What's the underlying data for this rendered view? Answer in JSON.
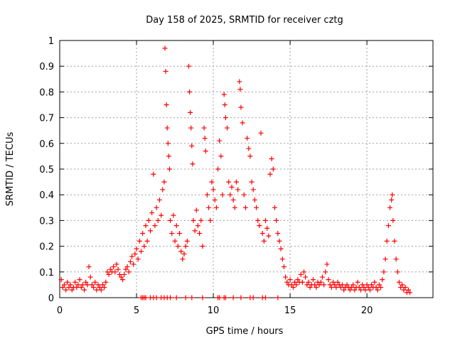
{
  "chart_data": {
    "type": "scatter",
    "title": "Day 158 of 2025, SRMTID for receiver cztg",
    "xlabel": "GPS time / hours",
    "ylabel": "SRMTID / TECUs",
    "xlim": [
      0,
      24.3
    ],
    "ylim": [
      0,
      1
    ],
    "xticks": [
      0,
      5,
      10,
      15,
      20
    ],
    "yticks": [
      0,
      0.1,
      0.2,
      0.3,
      0.4,
      0.5,
      0.6,
      0.7,
      0.8,
      0.9,
      1
    ],
    "xtick_labels": [
      "0",
      "5",
      "10",
      "15",
      "20"
    ],
    "ytick_labels": [
      "0",
      "0.1",
      "0.2",
      "0.3",
      "0.4",
      "0.5",
      "0.6",
      "0.7",
      "0.8",
      "0.9",
      "1"
    ],
    "grid": true,
    "marker": "+",
    "color": "#ff0000",
    "series": [
      {
        "name": "SRMTID",
        "points": [
          [
            0.1,
            0.07
          ],
          [
            0.2,
            0.04
          ],
          [
            0.3,
            0.05
          ],
          [
            0.4,
            0.03
          ],
          [
            0.5,
            0.06
          ],
          [
            0.6,
            0.04
          ],
          [
            0.7,
            0.05
          ],
          [
            0.8,
            0.03
          ],
          [
            0.9,
            0.04
          ],
          [
            1.0,
            0.06
          ],
          [
            1.1,
            0.04
          ],
          [
            1.2,
            0.05
          ],
          [
            1.3,
            0.07
          ],
          [
            1.4,
            0.04
          ],
          [
            1.5,
            0.05
          ],
          [
            1.6,
            0.03
          ],
          [
            1.7,
            0.06
          ],
          [
            1.8,
            0.05
          ],
          [
            1.9,
            0.12
          ],
          [
            2.0,
            0.08
          ],
          [
            2.1,
            0.05
          ],
          [
            2.2,
            0.04
          ],
          [
            2.3,
            0.06
          ],
          [
            2.4,
            0.03
          ],
          [
            2.5,
            0.05
          ],
          [
            2.6,
            0.04
          ],
          [
            2.7,
            0.03
          ],
          [
            2.8,
            0.05
          ],
          [
            2.9,
            0.04
          ],
          [
            3.0,
            0.06
          ],
          [
            3.1,
            0.1
          ],
          [
            3.2,
            0.09
          ],
          [
            3.3,
            0.11
          ],
          [
            3.4,
            0.1
          ],
          [
            3.5,
            0.12
          ],
          [
            3.6,
            0.1
          ],
          [
            3.7,
            0.13
          ],
          [
            3.8,
            0.11
          ],
          [
            3.9,
            0.09
          ],
          [
            4.0,
            0.08
          ],
          [
            4.1,
            0.07
          ],
          [
            4.2,
            0.09
          ],
          [
            4.3,
            0.11
          ],
          [
            4.4,
            0.12
          ],
          [
            4.5,
            0.1
          ],
          [
            4.6,
            0.14
          ],
          [
            4.7,
            0.16
          ],
          [
            4.8,
            0.13
          ],
          [
            4.9,
            0.17
          ],
          [
            5.0,
            0.19
          ],
          [
            5.1,
            0.15
          ],
          [
            5.2,
            0.22
          ],
          [
            5.3,
            0.18
          ],
          [
            5.4,
            0.25
          ],
          [
            5.5,
            0.2
          ],
          [
            5.6,
            0.28
          ],
          [
            5.7,
            0.22
          ],
          [
            5.8,
            0.3
          ],
          [
            5.9,
            0.26
          ],
          [
            6.0,
            0.33
          ],
          [
            6.1,
            0.48
          ],
          [
            6.2,
            0.28
          ],
          [
            6.3,
            0.35
          ],
          [
            6.4,
            0.3
          ],
          [
            6.5,
            0.38
          ],
          [
            6.6,
            0.32
          ],
          [
            6.7,
            0.42
          ],
          [
            6.8,
            0.45
          ],
          [
            6.85,
            0.97
          ],
          [
            6.9,
            0.88
          ],
          [
            6.95,
            0.75
          ],
          [
            7.0,
            0.66
          ],
          [
            7.05,
            0.6
          ],
          [
            7.1,
            0.55
          ],
          [
            7.15,
            0.5
          ],
          [
            7.2,
            0.3
          ],
          [
            7.3,
            0.25
          ],
          [
            7.4,
            0.32
          ],
          [
            7.5,
            0.22
          ],
          [
            7.6,
            0.28
          ],
          [
            7.7,
            0.2
          ],
          [
            7.8,
            0.25
          ],
          [
            7.9,
            0.18
          ],
          [
            8.0,
            0.15
          ],
          [
            8.1,
            0.17
          ],
          [
            8.2,
            0.2
          ],
          [
            8.3,
            0.22
          ],
          [
            8.4,
            0.9
          ],
          [
            8.45,
            0.8
          ],
          [
            8.5,
            0.72
          ],
          [
            8.55,
            0.66
          ],
          [
            8.6,
            0.59
          ],
          [
            8.65,
            0.52
          ],
          [
            8.7,
            0.3
          ],
          [
            8.8,
            0.26
          ],
          [
            8.9,
            0.34
          ],
          [
            9.0,
            0.28
          ],
          [
            9.1,
            0.25
          ],
          [
            9.2,
            0.3
          ],
          [
            9.3,
            0.2
          ],
          [
            9.4,
            0.66
          ],
          [
            9.45,
            0.62
          ],
          [
            9.5,
            0.57
          ],
          [
            9.6,
            0.4
          ],
          [
            9.7,
            0.35
          ],
          [
            9.8,
            0.3
          ],
          [
            9.9,
            0.45
          ],
          [
            10.0,
            0.42
          ],
          [
            10.1,
            0.38
          ],
          [
            10.2,
            0.35
          ],
          [
            10.3,
            0.5
          ],
          [
            10.4,
            0.61
          ],
          [
            10.5,
            0.55
          ],
          [
            10.6,
            0.4
          ],
          [
            10.7,
            0.79
          ],
          [
            10.75,
            0.75
          ],
          [
            10.8,
            0.7
          ],
          [
            10.9,
            0.66
          ],
          [
            11.0,
            0.45
          ],
          [
            11.1,
            0.4
          ],
          [
            11.2,
            0.43
          ],
          [
            11.3,
            0.38
          ],
          [
            11.4,
            0.35
          ],
          [
            11.5,
            0.45
          ],
          [
            11.6,
            0.42
          ],
          [
            11.7,
            0.84
          ],
          [
            11.75,
            0.81
          ],
          [
            11.8,
            0.74
          ],
          [
            11.9,
            0.68
          ],
          [
            12.0,
            0.4
          ],
          [
            12.1,
            0.35
          ],
          [
            12.2,
            0.62
          ],
          [
            12.3,
            0.58
          ],
          [
            12.4,
            0.55
          ],
          [
            12.5,
            0.45
          ],
          [
            12.6,
            0.42
          ],
          [
            12.7,
            0.38
          ],
          [
            12.8,
            0.35
          ],
          [
            12.9,
            0.3
          ],
          [
            13.0,
            0.28
          ],
          [
            13.1,
            0.64
          ],
          [
            13.2,
            0.25
          ],
          [
            13.3,
            0.22
          ],
          [
            13.4,
            0.3
          ],
          [
            13.5,
            0.27
          ],
          [
            13.6,
            0.24
          ],
          [
            13.7,
            0.48
          ],
          [
            13.8,
            0.54
          ],
          [
            13.9,
            0.5
          ],
          [
            14.0,
            0.35
          ],
          [
            14.1,
            0.3
          ],
          [
            14.2,
            0.25
          ],
          [
            14.3,
            0.22
          ],
          [
            14.4,
            0.19
          ],
          [
            14.5,
            0.15
          ],
          [
            14.6,
            0.12
          ],
          [
            14.7,
            0.08
          ],
          [
            14.8,
            0.06
          ],
          [
            14.9,
            0.05
          ],
          [
            15.0,
            0.07
          ],
          [
            15.1,
            0.05
          ],
          [
            15.2,
            0.04
          ],
          [
            15.3,
            0.06
          ],
          [
            15.4,
            0.05
          ],
          [
            15.5,
            0.07
          ],
          [
            15.6,
            0.06
          ],
          [
            15.7,
            0.09
          ],
          [
            15.8,
            0.06
          ],
          [
            15.9,
            0.1
          ],
          [
            16.0,
            0.08
          ],
          [
            16.1,
            0.05
          ],
          [
            16.2,
            0.06
          ],
          [
            16.3,
            0.04
          ],
          [
            16.4,
            0.05
          ],
          [
            16.5,
            0.07
          ],
          [
            16.6,
            0.05
          ],
          [
            16.7,
            0.04
          ],
          [
            16.8,
            0.06
          ],
          [
            16.9,
            0.05
          ],
          [
            17.0,
            0.06
          ],
          [
            17.1,
            0.08
          ],
          [
            17.2,
            0.05
          ],
          [
            17.3,
            0.1
          ],
          [
            17.4,
            0.13
          ],
          [
            17.5,
            0.07
          ],
          [
            17.6,
            0.05
          ],
          [
            17.7,
            0.04
          ],
          [
            17.8,
            0.06
          ],
          [
            17.9,
            0.05
          ],
          [
            18.0,
            0.04
          ],
          [
            18.1,
            0.06
          ],
          [
            18.2,
            0.05
          ],
          [
            18.3,
            0.04
          ],
          [
            18.4,
            0.05
          ],
          [
            18.5,
            0.03
          ],
          [
            18.6,
            0.04
          ],
          [
            18.7,
            0.05
          ],
          [
            18.8,
            0.04
          ],
          [
            18.9,
            0.03
          ],
          [
            19.0,
            0.04
          ],
          [
            19.1,
            0.05
          ],
          [
            19.2,
            0.03
          ],
          [
            19.3,
            0.04
          ],
          [
            19.4,
            0.06
          ],
          [
            19.5,
            0.04
          ],
          [
            19.6,
            0.03
          ],
          [
            19.7,
            0.05
          ],
          [
            19.8,
            0.04
          ],
          [
            19.9,
            0.03
          ],
          [
            20.0,
            0.05
          ],
          [
            20.1,
            0.04
          ],
          [
            20.2,
            0.03
          ],
          [
            20.3,
            0.05
          ],
          [
            20.4,
            0.04
          ],
          [
            20.5,
            0.06
          ],
          [
            20.6,
            0.04
          ],
          [
            20.7,
            0.03
          ],
          [
            20.8,
            0.05
          ],
          [
            20.9,
            0.04
          ],
          [
            21.0,
            0.07
          ],
          [
            21.1,
            0.1
          ],
          [
            21.2,
            0.15
          ],
          [
            21.3,
            0.22
          ],
          [
            21.4,
            0.28
          ],
          [
            21.5,
            0.35
          ],
          [
            21.6,
            0.38
          ],
          [
            21.65,
            0.4
          ],
          [
            21.7,
            0.3
          ],
          [
            21.8,
            0.22
          ],
          [
            21.9,
            0.15
          ],
          [
            22.0,
            0.1
          ],
          [
            22.1,
            0.06
          ],
          [
            22.2,
            0.04
          ],
          [
            22.3,
            0.05
          ],
          [
            22.4,
            0.03
          ],
          [
            22.5,
            0.04
          ],
          [
            22.6,
            0.02
          ],
          [
            22.7,
            0.03
          ],
          [
            22.8,
            0.02
          ],
          [
            5.3,
            0.0
          ],
          [
            5.4,
            0.0
          ],
          [
            5.5,
            0.0
          ],
          [
            5.6,
            0.0
          ],
          [
            5.9,
            0.0
          ],
          [
            6.1,
            0.0
          ],
          [
            6.3,
            0.0
          ],
          [
            6.6,
            0.0
          ],
          [
            6.8,
            0.0
          ],
          [
            7.0,
            0.0
          ],
          [
            7.2,
            0.0
          ],
          [
            7.6,
            0.0
          ],
          [
            8.2,
            0.0
          ],
          [
            8.6,
            0.0
          ],
          [
            9.3,
            0.0
          ],
          [
            10.3,
            0.0
          ],
          [
            10.4,
            0.0
          ],
          [
            10.7,
            0.0
          ],
          [
            10.8,
            0.0
          ],
          [
            11.3,
            0.0
          ],
          [
            11.8,
            0.0
          ],
          [
            12.4,
            0.0
          ],
          [
            12.6,
            0.0
          ],
          [
            13.2,
            0.0
          ],
          [
            13.4,
            0.0
          ],
          [
            14.2,
            0.0
          ]
        ]
      }
    ]
  }
}
